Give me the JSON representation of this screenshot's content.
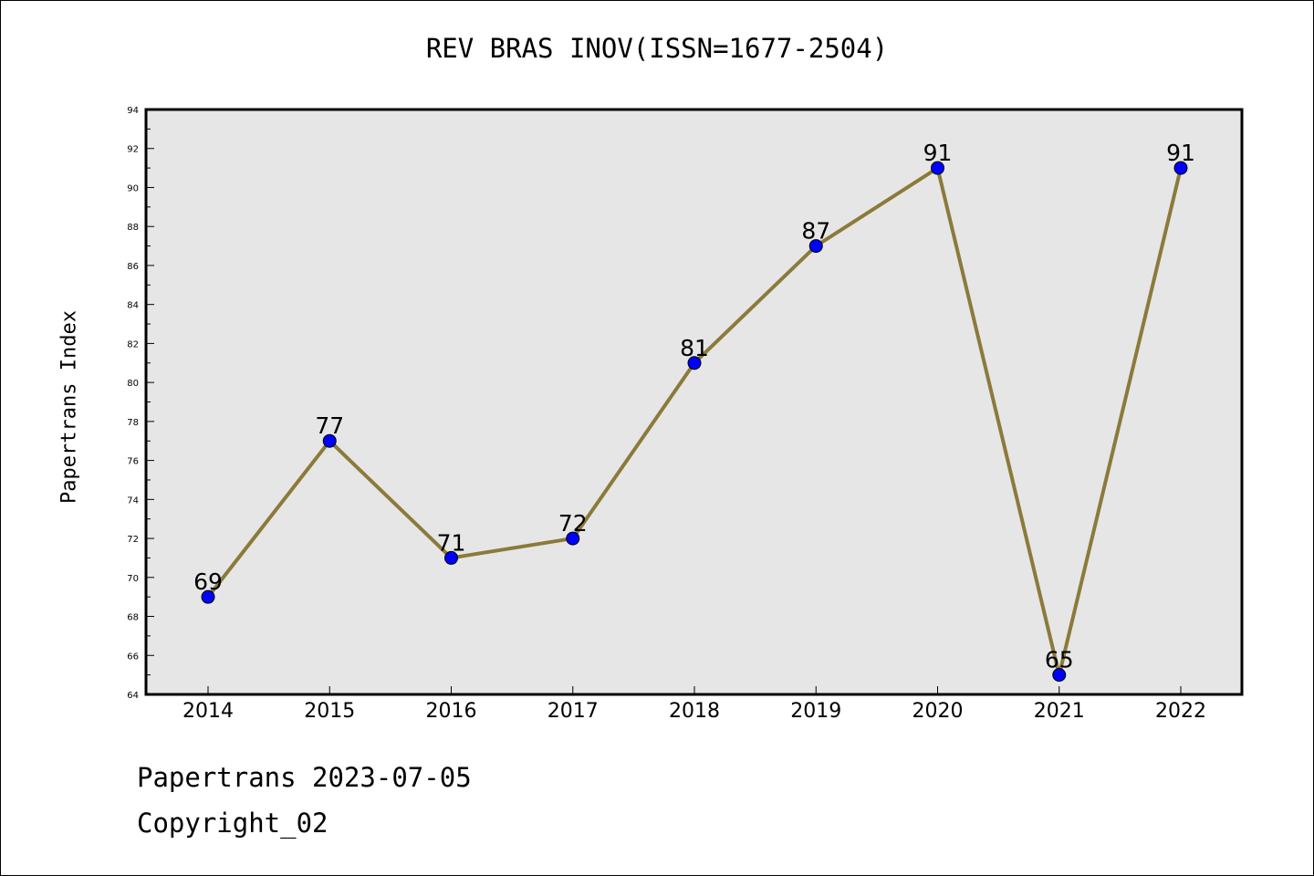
{
  "title": "REV BRAS INOV(ISSN=1677-2504)",
  "footer": {
    "date_line": "Papertrans 2023-07-05",
    "copyright": "Copyright_02"
  },
  "chart_data": {
    "type": "line",
    "title": "REV BRAS INOV(ISSN=1677-2504)",
    "xlabel": "",
    "ylabel": "Papertrans Index",
    "categories": [
      "2014",
      "2015",
      "2016",
      "2017",
      "2018",
      "2019",
      "2020",
      "2021",
      "2022"
    ],
    "series": [
      {
        "values": [
          69,
          77,
          71,
          72,
          81,
          87,
          91,
          65,
          91
        ]
      }
    ],
    "ylim": [
      64,
      94
    ],
    "yticks": [
      64,
      66,
      68,
      70,
      72,
      74,
      76,
      78,
      80,
      82,
      84,
      86,
      88,
      90,
      92,
      94
    ],
    "data_labels": true,
    "grid": false,
    "colors": {
      "line": "#8b7a3a",
      "marker": "#0000ff",
      "plot_background": "#e6e6e6"
    }
  }
}
